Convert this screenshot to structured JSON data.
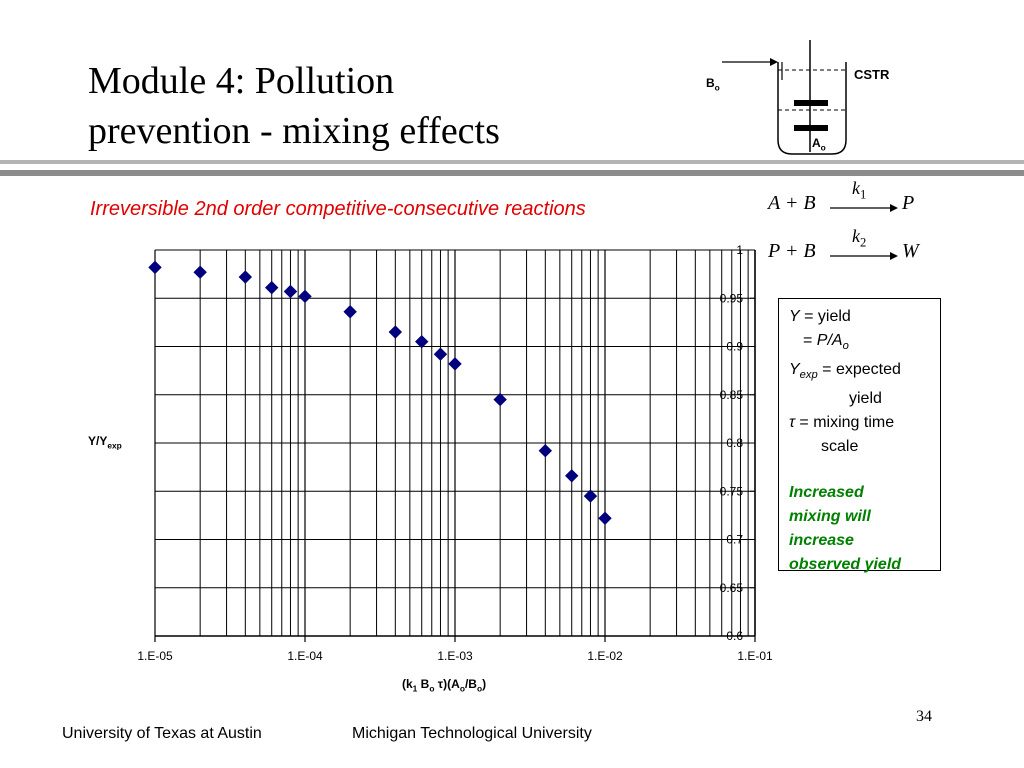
{
  "slide": {
    "title_line1": "Module 4:  Pollution",
    "title_line2": "prevention - mixing effects",
    "subtitle": "Irreversible 2nd order competitive-consecutive reactions",
    "page_number": "34"
  },
  "diagram": {
    "inlet_label": "B",
    "inlet_sub": "o",
    "initial_label": "A",
    "initial_sub": "o",
    "reactor_label": "CSTR"
  },
  "reactions": [
    {
      "lhs": "A + B",
      "k": "k",
      "k_sub": "1",
      "rhs": "P"
    },
    {
      "lhs": "P + B",
      "k": "k",
      "k_sub": "2",
      "rhs": "W"
    }
  ],
  "legend": {
    "y_sym": "Y",
    "y_def": " = yield",
    "p_over_a": "P/A",
    "p_over_a_sub": "o",
    "eq_prefix": "= ",
    "yexp_sym": "Y",
    "yexp_sub": "exp",
    "yexp_def": " = expected",
    "yexp_def2": "yield",
    "tau_sym": "τ",
    "tau_def": " = mixing time",
    "tau_def2": "scale",
    "note_lines": [
      "Increased",
      "mixing will",
      "increase",
      "observed yield"
    ]
  },
  "colors": {
    "subtitle": "#e00000",
    "marker": "#00007f",
    "note": "#008000",
    "rule": "#9a9a9a"
  },
  "chart_data": {
    "type": "scatter",
    "title": "",
    "ylabel": "Y/Y",
    "ylabel_sub": "exp",
    "xlabel_parts": [
      "(k",
      "1",
      " B",
      "o",
      " τ)(A",
      "o",
      "/B",
      "o",
      ")"
    ],
    "x_scale": "log",
    "xlim": [
      1e-05,
      0.1
    ],
    "ylim": [
      0.6,
      1.0
    ],
    "x_tick_labels": [
      "1.E-05",
      "1.E-04",
      "1.E-03",
      "1.E-02",
      "1.E-01"
    ],
    "y_tick_labels": [
      "0.6",
      "0.65",
      "0.7",
      "0.75",
      "0.8",
      "0.85",
      "0.9",
      "0.95",
      "1"
    ],
    "grid": true,
    "series": [
      {
        "marker": "diamond",
        "x": [
          1e-05,
          2e-05,
          4e-05,
          6e-05,
          8e-05,
          0.0001,
          0.0002,
          0.0004,
          0.0006,
          0.0008,
          0.001,
          0.002,
          0.004,
          0.006,
          0.008,
          0.01
        ],
        "y": [
          0.982,
          0.977,
          0.972,
          0.961,
          0.957,
          0.952,
          0.936,
          0.915,
          0.905,
          0.892,
          0.882,
          0.845,
          0.792,
          0.766,
          0.745,
          0.722
        ]
      }
    ]
  }
}
